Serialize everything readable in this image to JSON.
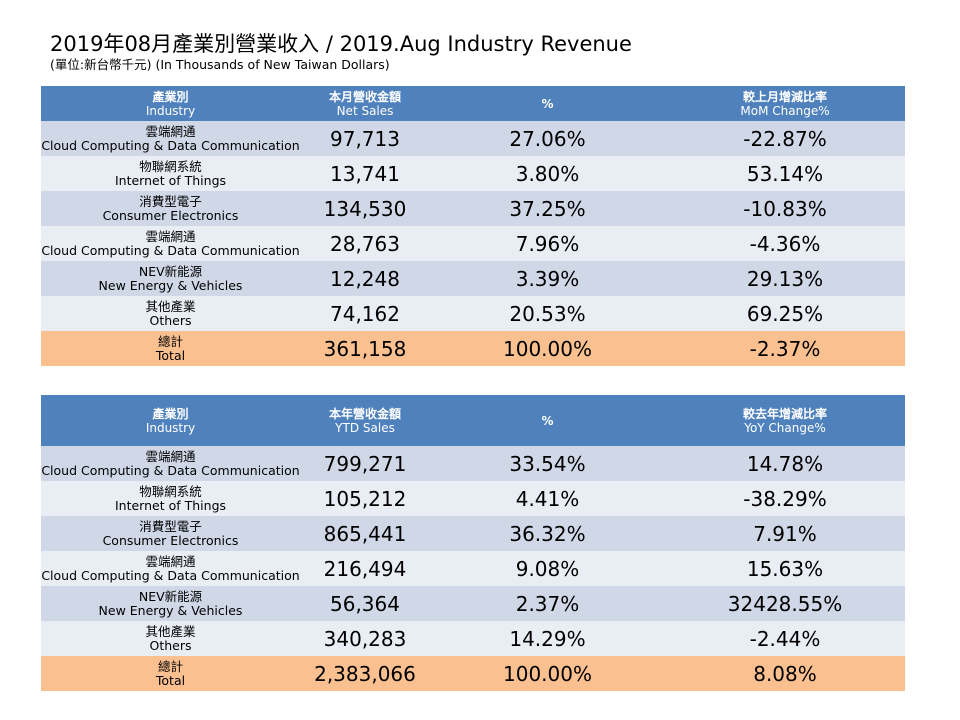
{
  "title": "2019年08月產業別營業收入 / 2019.Aug Industry Revenue",
  "subtitle": "(單位:新台幣千元) (In Thousands of New Taiwan Dollars)",
  "colors": {
    "header": "#4f81bd",
    "row_dark": "#d0d8e8",
    "row_light": "#e9edf4",
    "total": "#fac090"
  },
  "monthly": {
    "headers": [
      {
        "zh": "產業別",
        "en": "Industry"
      },
      {
        "zh": "本月營收金額",
        "en": "Net Sales"
      },
      {
        "zh": "%",
        "en": ""
      },
      {
        "zh": "較上月增減比率",
        "en": "MoM Change%"
      }
    ],
    "rows": [
      {
        "zh": "雲端網通",
        "en": "Cloud Computing & Data Communication",
        "sales": "97,713",
        "pct": "27.06%",
        "change": "-22.87%"
      },
      {
        "zh": "物聯網系統",
        "en": "Internet of Things",
        "sales": "13,741",
        "pct": "3.80%",
        "change": "53.14%"
      },
      {
        "zh": "消費型電子",
        "en": "Consumer Electronics",
        "sales": "134,530",
        "pct": "37.25%",
        "change": "-10.83%"
      },
      {
        "zh": "雲端網通",
        "en": "Cloud Computing & Data Communication",
        "sales": "28,763",
        "pct": "7.96%",
        "change": "-4.36%"
      },
      {
        "zh": "NEV新能源",
        "en": "New Energy & Vehicles",
        "sales": "12,248",
        "pct": "3.39%",
        "change": "29.13%"
      },
      {
        "zh": "其他產業",
        "en": "Others",
        "sales": "74,162",
        "pct": "20.53%",
        "change": "69.25%"
      },
      {
        "zh": "總計",
        "en": "Total",
        "sales": "361,158",
        "pct": "100.00%",
        "change": "-2.37%"
      }
    ]
  },
  "ytd": {
    "headers": [
      {
        "zh": "產業別",
        "en": "Industry"
      },
      {
        "zh": "本年營收金額",
        "en": "YTD Sales"
      },
      {
        "zh": "%",
        "en": ""
      },
      {
        "zh": "較去年增減比率",
        "en": "YoY Change%"
      }
    ],
    "rows": [
      {
        "zh": "雲端網通",
        "en": "Cloud Computing & Data Communication",
        "sales": "799,271",
        "pct": "33.54%",
        "change": "14.78%"
      },
      {
        "zh": "物聯網系統",
        "en": "Internet of Things",
        "sales": "105,212",
        "pct": "4.41%",
        "change": "-38.29%"
      },
      {
        "zh": "消費型電子",
        "en": "Consumer Electronics",
        "sales": "865,441",
        "pct": "36.32%",
        "change": "7.91%"
      },
      {
        "zh": "雲端網通",
        "en": "Cloud Computing & Data Communication",
        "sales": "216,494",
        "pct": "9.08%",
        "change": "15.63%"
      },
      {
        "zh": "NEV新能源",
        "en": "New Energy & Vehicles",
        "sales": "56,364",
        "pct": "2.37%",
        "change": "32428.55%"
      },
      {
        "zh": "其他產業",
        "en": "Others",
        "sales": "340,283",
        "pct": "14.29%",
        "change": "-2.44%"
      },
      {
        "zh": "總計",
        "en": "Total",
        "sales": "2,383,066",
        "pct": "100.00%",
        "change": "8.08%"
      }
    ]
  }
}
